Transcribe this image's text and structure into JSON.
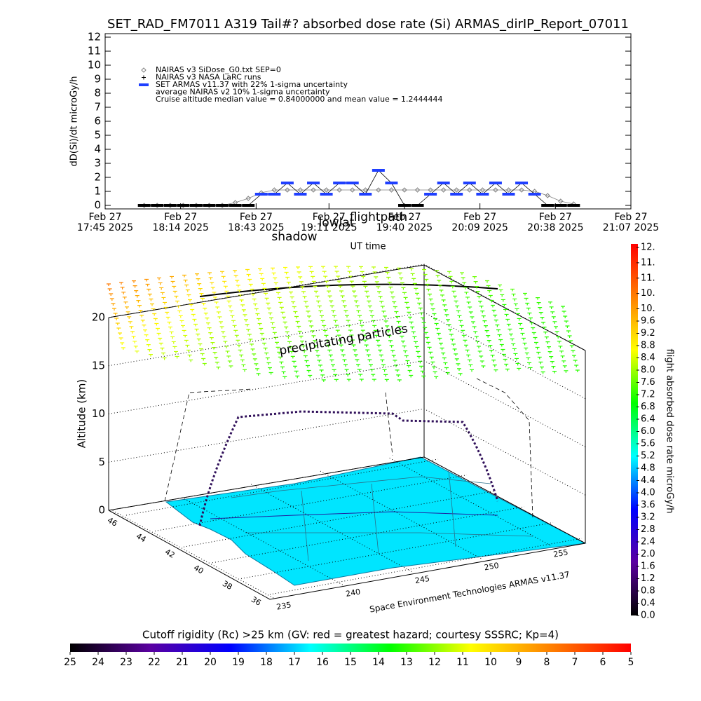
{
  "chart_data": [
    {
      "type": "line",
      "title": "SET_RAD_FM7011  A319 Tail#? absorbed dose rate (Si) ARMAS_dirIP_Report_07011",
      "ylabel": "dD(Si)/dt microGy/h",
      "xlabel": "UT time",
      "ylim": [
        -0.25,
        12.25
      ],
      "yticks": [
        0,
        1,
        2,
        3,
        4,
        5,
        6,
        7,
        8,
        9,
        10,
        11,
        12
      ],
      "xlim": [
        "2025-02-27T17:45",
        "2025-02-27T21:07"
      ],
      "xticks": [
        {
          "value": "2025-02-27T17:45",
          "label": "Feb 27\n17:45 2025"
        },
        {
          "value": "2025-02-27T18:14",
          "label": "Feb 27\n18:14 2025"
        },
        {
          "value": "2025-02-27T18:43",
          "label": "Feb 27\n18:43 2025"
        },
        {
          "value": "2025-02-27T19:11",
          "label": "Feb 27\n19:11 2025"
        },
        {
          "value": "2025-02-27T19:40",
          "label": "Feb 27\n19:40 2025"
        },
        {
          "value": "2025-02-27T20:09",
          "label": "Feb 27\n20:09 2025"
        },
        {
          "value": "2025-02-27T20:38",
          "label": "Feb 27\n20:38 2025"
        },
        {
          "value": "2025-02-27T21:07",
          "label": "Feb 27\n21:07 2025"
        }
      ],
      "x": [
        "2025-02-27T18:00",
        "2025-02-27T18:05",
        "2025-02-27T18:10",
        "2025-02-27T18:15",
        "2025-02-27T18:20",
        "2025-02-27T18:25",
        "2025-02-27T18:30",
        "2025-02-27T18:35",
        "2025-02-27T18:40",
        "2025-02-27T18:45",
        "2025-02-27T18:50",
        "2025-02-27T18:55",
        "2025-02-27T19:00",
        "2025-02-27T19:05",
        "2025-02-27T19:10",
        "2025-02-27T19:15",
        "2025-02-27T19:20",
        "2025-02-27T19:25",
        "2025-02-27T19:30",
        "2025-02-27T19:35",
        "2025-02-27T19:40",
        "2025-02-27T19:45",
        "2025-02-27T19:50",
        "2025-02-27T19:55",
        "2025-02-27T20:00",
        "2025-02-27T20:05",
        "2025-02-27T20:10",
        "2025-02-27T20:15",
        "2025-02-27T20:20",
        "2025-02-27T20:25",
        "2025-02-27T20:30",
        "2025-02-27T20:35",
        "2025-02-27T20:40",
        "2025-02-27T20:45"
      ],
      "series": [
        {
          "name": "NAIRAS v3 SiDose_G0.txt SEP=0",
          "color": "#808080",
          "values": [
            0,
            0,
            0,
            0,
            0,
            0,
            0,
            0.2,
            0.5,
            0.9,
            1.1,
            1.1,
            1.1,
            1.1,
            1.1,
            1.1,
            1.1,
            1.1,
            1.1,
            1.1,
            1.1,
            1.1,
            1.1,
            1.1,
            1.1,
            1.1,
            1.1,
            1.1,
            1.1,
            1.1,
            1.0,
            0.7,
            0.3,
            0.1
          ]
        },
        {
          "name": "SET ARMAS v11.37 with 22% 1-sigma uncertainty",
          "color": "#1f3fff",
          "values": [
            0,
            0,
            0,
            0,
            0,
            0,
            0,
            0,
            0,
            0.8,
            0.8,
            1.6,
            0.8,
            1.6,
            0.8,
            1.6,
            1.6,
            0.8,
            2.5,
            1.6,
            0,
            0,
            0.8,
            1.6,
            0.8,
            1.6,
            0.8,
            1.6,
            0.8,
            1.6,
            0.8,
            0,
            0,
            0
          ]
        }
      ],
      "legend_notes": [
        "NAIRAS v3 NASA LaRC runs",
        "average NAIRAS v2 10% 1-sigma uncertainty",
        "Cruise altitude median value = 0.84000000 and mean value = 1.2444444"
      ],
      "annotations": [
        "shadow",
        "lowlat",
        "flightpath"
      ]
    },
    {
      "type": "3d",
      "zlabel": "Altitude (km)",
      "zlim": [
        0,
        20
      ],
      "zticks": [
        0,
        5,
        10,
        15,
        20
      ],
      "xlim": [
        235,
        255
      ],
      "xticks": [
        235,
        240,
        245,
        250,
        255
      ],
      "ylim": [
        36,
        46
      ],
      "yticks": [
        36,
        38,
        40,
        42,
        44,
        46
      ],
      "annotations": [
        "precipitating particles",
        "Space Environment Technologies ARMAS v11.37"
      ]
    },
    {
      "type": "colorbar",
      "title": "flight absorbed dose rate microGy/h",
      "colormap": [
        "#000000",
        "#5a00a0",
        "#0000ff",
        "#00ffff",
        "#00ff00",
        "#ffff00",
        "#ff8000",
        "#ff0000"
      ],
      "lim": [
        0,
        12
      ],
      "ticks": [
        {
          "value": 0,
          "label": "0.0"
        },
        0.4,
        0.8,
        1.2,
        1.6,
        {
          "value": 2,
          "label": "2.0"
        },
        2.4,
        2.8,
        3.2,
        3.6,
        {
          "value": 4,
          "label": "4.0"
        },
        4.4,
        4.8,
        5.2,
        5.6,
        {
          "value": 6,
          "label": "6.0"
        },
        6.4,
        6.8,
        7.2,
        7.6,
        {
          "value": 8,
          "label": "8.0"
        },
        8.4,
        8.8,
        9.2,
        9.6,
        {
          "value": 10,
          "label": "10."
        },
        {
          "value": 10.5,
          "label": "10."
        },
        {
          "value": 11,
          "label": "11."
        },
        {
          "value": 11.5,
          "label": "11."
        },
        {
          "value": 12,
          "label": "12."
        }
      ]
    },
    {
      "type": "colorbar",
      "title": "Cutoff rigidity (Rc) >25 km (GV: red = greatest hazard; courtesy SSSRC; Kp=4)",
      "colormap": [
        "#000000",
        "#5a00a0",
        "#0000ff",
        "#00ffff",
        "#00ff00",
        "#ffff00",
        "#ff8000",
        "#ff0000"
      ],
      "lim": [
        25,
        5
      ],
      "ticks": [
        25,
        24,
        23,
        22,
        21,
        20,
        19,
        18,
        17,
        16,
        15,
        14,
        13,
        12,
        11,
        10,
        9,
        8,
        7,
        6,
        5
      ]
    }
  ]
}
